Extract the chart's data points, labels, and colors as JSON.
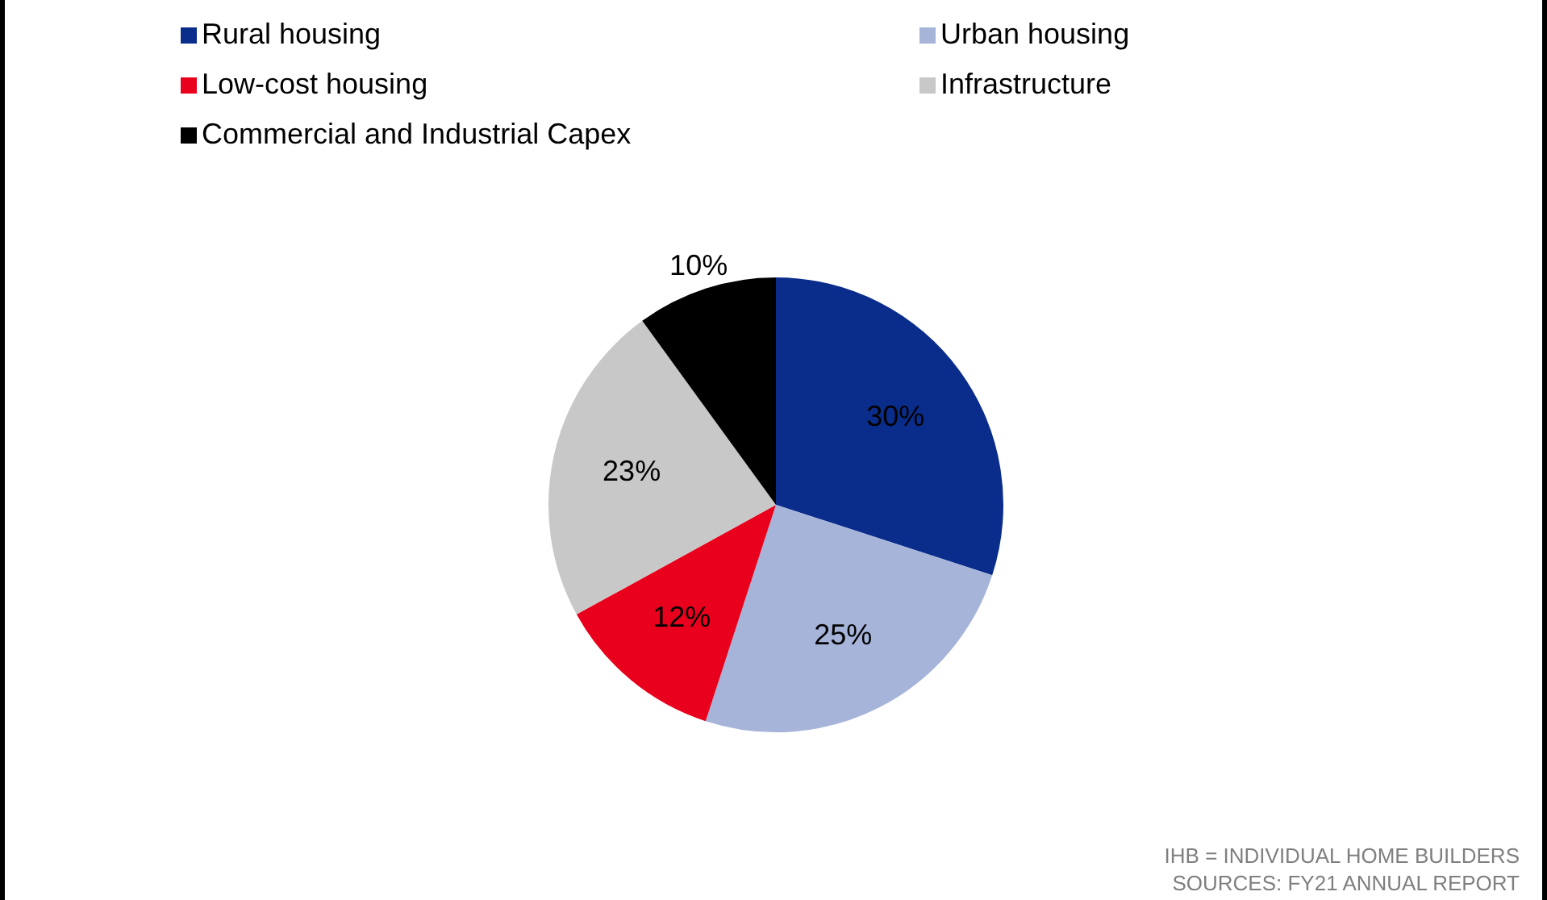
{
  "chart_data": {
    "type": "pie",
    "categories": [
      "Rural housing",
      "Urban housing",
      "Low-cost housing",
      "Infrastructure",
      "Commercial and Industrial Capex"
    ],
    "values": [
      30,
      25,
      12,
      23,
      10
    ],
    "colors": [
      "#0a2d8c",
      "#a6b4da",
      "#e8001c",
      "#c8c8c8",
      "#000000"
    ],
    "value_labels": [
      "30%",
      "25%",
      "12%",
      "23%",
      "10%"
    ],
    "legend": "top left",
    "annotations": [
      "IHB = INDIVIDUAL HOME BUILDERS",
      "SOURCES: FY21 ANNUAL REPORT"
    ]
  }
}
